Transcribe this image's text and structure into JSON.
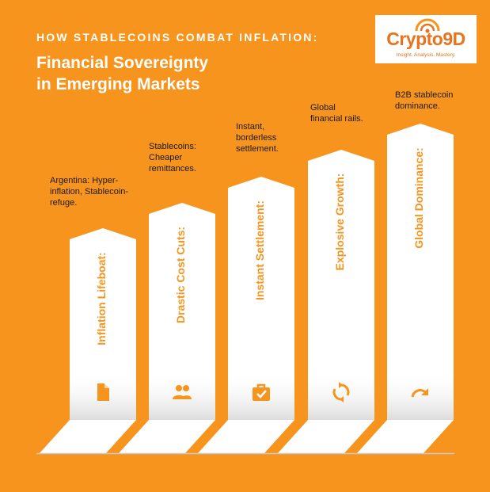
{
  "header": {
    "eyebrow": "HOW STABLECOINS COMBAT INFLATION:",
    "headline_line1": "Financial Sovereignty",
    "headline_line2": "in Emerging Markets"
  },
  "logo": {
    "name": "Crypto9D",
    "tagline": "Insight. Analysis. Mastery."
  },
  "colors": {
    "background": "#F7941D",
    "pillar": "#FFFFFF",
    "accent": "#F7941D"
  },
  "steps": [
    {
      "label": "Inflation Lifeboat:",
      "desc_lines": [
        "Argentina: Hyper-",
        "inflation, Stablecoin-",
        "refuge."
      ],
      "icon": "document-icon"
    },
    {
      "label": "Drastic Cost Cuts:",
      "desc_lines": [
        "Stablecoins:",
        "Cheaper",
        "remittances."
      ],
      "icon": "people-icon"
    },
    {
      "label": "Instant Settlement:",
      "desc_lines": [
        "Instant,",
        "borderless",
        "settlement."
      ],
      "icon": "briefcase-check-icon"
    },
    {
      "label": "Explosive Growth:",
      "desc_lines": [
        "Global",
        "financial rails."
      ],
      "icon": "sync-icon"
    },
    {
      "label": "Global Dominance:",
      "desc_lines": [
        "B2B stablecoin",
        "dominance."
      ],
      "icon": "redo-arrow-icon"
    }
  ]
}
